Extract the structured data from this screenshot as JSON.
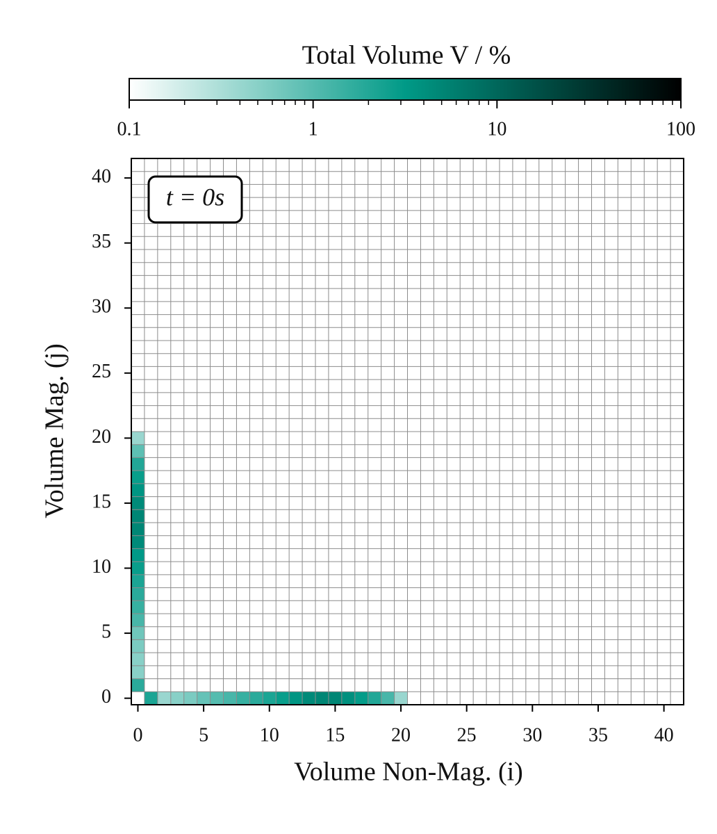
{
  "chart_data": {
    "type": "heatmap",
    "colorbar_label": "Total Volume V / %",
    "annotation": "t = 0s",
    "xlabel": "Volume Non-Mag. (i)",
    "ylabel": "Volume Mag. (j)",
    "xlim": [
      -0.5,
      41.5
    ],
    "ylim": [
      -0.5,
      41.5
    ],
    "xticks": [
      0,
      5,
      10,
      15,
      20,
      25,
      30,
      35,
      40
    ],
    "yticks": [
      0,
      5,
      10,
      15,
      20,
      25,
      30,
      35,
      40
    ],
    "clim": [
      0.1,
      100
    ],
    "cscale": "log",
    "cticks": [
      0.1,
      1,
      10,
      100
    ],
    "cticks_minor": [
      0.2,
      0.3,
      0.4,
      0.5,
      0.6,
      0.7,
      0.8,
      0.9,
      2,
      3,
      4,
      5,
      6,
      7,
      8,
      9,
      20,
      30,
      40,
      50,
      60,
      70,
      80,
      90
    ],
    "colormap": [
      "#ffffff",
      "#009a87",
      "#000000"
    ],
    "grid_color": "#8c8c8c",
    "cells": [
      {
        "x": 1,
        "y": 0,
        "value": 2.2
      },
      {
        "x": 2,
        "y": 0,
        "value": 0.4
      },
      {
        "x": 3,
        "y": 0,
        "value": 0.5
      },
      {
        "x": 4,
        "y": 0,
        "value": 0.6
      },
      {
        "x": 5,
        "y": 0,
        "value": 0.8
      },
      {
        "x": 6,
        "y": 0,
        "value": 1.0
      },
      {
        "x": 7,
        "y": 0,
        "value": 1.2
      },
      {
        "x": 8,
        "y": 0,
        "value": 1.5
      },
      {
        "x": 9,
        "y": 0,
        "value": 1.8
      },
      {
        "x": 10,
        "y": 0,
        "value": 2.2
      },
      {
        "x": 11,
        "y": 0,
        "value": 2.8
      },
      {
        "x": 12,
        "y": 0,
        "value": 3.5
      },
      {
        "x": 13,
        "y": 0,
        "value": 4.5
      },
      {
        "x": 14,
        "y": 0,
        "value": 5
      },
      {
        "x": 15,
        "y": 0,
        "value": 5
      },
      {
        "x": 16,
        "y": 0,
        "value": 4
      },
      {
        "x": 17,
        "y": 0,
        "value": 3
      },
      {
        "x": 18,
        "y": 0,
        "value": 2
      },
      {
        "x": 19,
        "y": 0,
        "value": 1.2
      },
      {
        "x": 20,
        "y": 0,
        "value": 0.4
      },
      {
        "x": 0,
        "y": 1,
        "value": 1.8
      },
      {
        "x": 0,
        "y": 2,
        "value": 0.5
      },
      {
        "x": 0,
        "y": 3,
        "value": 0.5
      },
      {
        "x": 0,
        "y": 4,
        "value": 0.6
      },
      {
        "x": 0,
        "y": 5,
        "value": 0.7
      },
      {
        "x": 0,
        "y": 6,
        "value": 1.2
      },
      {
        "x": 0,
        "y": 7,
        "value": 1.5
      },
      {
        "x": 0,
        "y": 8,
        "value": 1.8
      },
      {
        "x": 0,
        "y": 9,
        "value": 2.2
      },
      {
        "x": 0,
        "y": 10,
        "value": 2.8
      },
      {
        "x": 0,
        "y": 11,
        "value": 3.2
      },
      {
        "x": 0,
        "y": 12,
        "value": 4.5
      },
      {
        "x": 0,
        "y": 13,
        "value": 5
      },
      {
        "x": 0,
        "y": 14,
        "value": 5
      },
      {
        "x": 0,
        "y": 15,
        "value": 4.5
      },
      {
        "x": 0,
        "y": 16,
        "value": 3.5
      },
      {
        "x": 0,
        "y": 17,
        "value": 2.8
      },
      {
        "x": 0,
        "y": 18,
        "value": 2
      },
      {
        "x": 0,
        "y": 19,
        "value": 0.9
      },
      {
        "x": 0,
        "y": 20,
        "value": 0.4
      }
    ]
  }
}
